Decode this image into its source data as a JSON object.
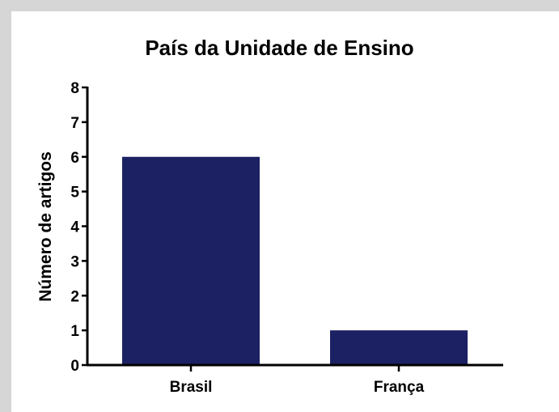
{
  "chart_data": {
    "type": "bar",
    "title": "País da Unidade de Ensino",
    "xlabel": "",
    "ylabel": "Número de artigos",
    "categories": [
      "Brasil",
      "França"
    ],
    "values": [
      6,
      1
    ],
    "ylim": [
      0,
      8
    ],
    "yticks": [
      "0",
      "1",
      "2",
      "3",
      "4",
      "5",
      "6",
      "7",
      "8"
    ],
    "grid": false,
    "bar_color": "#1c2163"
  }
}
